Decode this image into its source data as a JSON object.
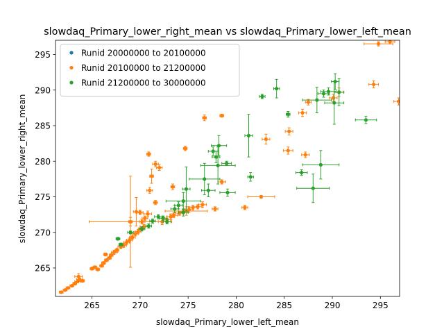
{
  "chart_data": {
    "type": "scatter",
    "title": "slowdaq_Primary_lower_right_mean vs slowdaq_Primary_lower_left_mean",
    "xlabel": "slowdaq_Primary_lower_left_mean",
    "ylabel": "slowdaq_Primary_lower_right_mean",
    "xlim": [
      261.2,
      297.0
    ],
    "ylim": [
      261.0,
      297.0
    ],
    "xticks": [
      "265",
      "270",
      "275",
      "280",
      "285",
      "290",
      "295"
    ],
    "yticks": [
      "265",
      "270",
      "275",
      "280",
      "285",
      "290",
      "295"
    ],
    "grid": false,
    "legend_position": "upper-left",
    "error_bars": true,
    "series": [
      {
        "name": "Runid 20000000 to 20100000",
        "color": "#1f77b4",
        "points": []
      },
      {
        "name": "Runid 20100000 to 21200000",
        "color": "#ff7f0e",
        "points": [
          [
            261.8,
            261.6,
            0.2,
            0.1
          ],
          [
            262.2,
            261.9,
            0.2,
            0.1
          ],
          [
            262.5,
            262.2,
            0.2,
            0.1
          ],
          [
            262.9,
            262.5,
            0.2,
            0.1
          ],
          [
            263.2,
            262.8,
            0.2,
            0.2
          ],
          [
            263.5,
            263.1,
            0.3,
            0.2
          ],
          [
            263.7,
            263.4,
            0.3,
            0.2
          ],
          [
            263.6,
            263.8,
            0.4,
            0.4
          ],
          [
            264.0,
            263.2,
            0.2,
            0.2
          ],
          [
            265.0,
            264.9,
            0.2,
            0.2
          ],
          [
            265.3,
            265.1,
            0.2,
            0.2
          ],
          [
            265.6,
            264.8,
            0.2,
            0.2
          ],
          [
            266.0,
            265.3,
            0.2,
            0.2
          ],
          [
            266.2,
            265.7,
            0.2,
            0.2
          ],
          [
            266.5,
            266.1,
            0.2,
            0.2
          ],
          [
            266.8,
            266.4,
            0.2,
            0.2
          ],
          [
            266.4,
            266.9,
            0.2,
            0.2
          ],
          [
            267.0,
            266.8,
            0.2,
            0.2
          ],
          [
            267.3,
            267.2,
            0.3,
            0.3
          ],
          [
            267.6,
            267.5,
            0.2,
            0.3
          ],
          [
            268.0,
            268.0,
            0.3,
            0.3
          ],
          [
            268.3,
            268.2,
            0.3,
            0.3
          ],
          [
            268.6,
            268.6,
            0.3,
            0.3
          ],
          [
            268.9,
            268.9,
            0.3,
            0.3
          ],
          [
            269.2,
            269.3,
            0.3,
            0.3
          ],
          [
            269.5,
            269.8,
            0.3,
            0.3
          ],
          [
            269.8,
            270.1,
            0.3,
            0.3
          ],
          [
            270.1,
            270.5,
            0.3,
            0.3
          ],
          [
            270.4,
            270.8,
            0.4,
            0.3
          ],
          [
            270.2,
            271.5,
            0.3,
            0.3
          ],
          [
            270.5,
            272.0,
            0.3,
            0.3
          ],
          [
            270.0,
            272.8,
            0.3,
            0.3
          ],
          [
            269.0,
            271.5,
            4.3,
            0.6
          ],
          [
            269.0,
            271.5,
            0.2,
            6.4
          ],
          [
            269.6,
            272.9,
            0.3,
            2.0
          ],
          [
            270.8,
            272.6,
            0.4,
            0.4
          ],
          [
            271.0,
            275.9,
            0.3,
            0.4
          ],
          [
            271.2,
            277.9,
            0.2,
            1.0
          ],
          [
            271.6,
            279.6,
            0.3,
            0.4
          ],
          [
            272.0,
            279.1,
            0.3,
            0.4
          ],
          [
            270.9,
            281.0,
            0.2,
            0.3
          ],
          [
            271.6,
            274.2,
            0.2,
            0.3
          ],
          [
            272.3,
            271.5,
            0.4,
            0.4
          ],
          [
            272.8,
            271.8,
            0.4,
            0.4
          ],
          [
            273.2,
            272.2,
            0.4,
            0.4
          ],
          [
            273.5,
            272.4,
            0.4,
            0.3
          ],
          [
            274.1,
            272.7,
            0.4,
            0.3
          ],
          [
            274.5,
            272.9,
            0.5,
            0.3
          ],
          [
            275.1,
            273.2,
            0.4,
            0.4
          ],
          [
            275.5,
            273.5,
            0.5,
            0.3
          ],
          [
            276.0,
            273.6,
            0.5,
            0.3
          ],
          [
            276.5,
            273.9,
            0.4,
            0.4
          ],
          [
            274.8,
            273.0,
            2.2,
            0.6
          ],
          [
            273.4,
            276.4,
            0.2,
            0.4
          ],
          [
            274.7,
            281.8,
            0.2,
            0.3
          ],
          [
            276.7,
            286.1,
            0.2,
            0.4
          ],
          [
            277.8,
            273.3,
            0.3,
            0.3
          ],
          [
            278.5,
            277.1,
            0.4,
            0.3
          ],
          [
            278.5,
            286.4,
            0.2,
            0.2
          ],
          [
            280.9,
            273.5,
            0.3,
            0.3
          ],
          [
            282.6,
            275.0,
            1.4,
            0.2
          ],
          [
            283.1,
            283.1,
            0.4,
            0.7
          ],
          [
            285.4,
            281.5,
            0.5,
            0.5
          ],
          [
            285.5,
            284.2,
            0.4,
            0.5
          ],
          [
            286.9,
            286.8,
            0.4,
            0.5
          ],
          [
            287.2,
            280.9,
            0.4,
            0.4
          ],
          [
            287.5,
            288.3,
            0.3,
            0.4
          ],
          [
            290.1,
            288.9,
            0.4,
            0.5
          ],
          [
            290.7,
            289.7,
            0.5,
            0.6
          ],
          [
            294.3,
            290.8,
            0.5,
            0.5
          ],
          [
            294.8,
            296.5,
            1.5,
            0.3
          ],
          [
            296.0,
            296.8,
            0.5,
            0.3
          ],
          [
            296.9,
            288.4,
            0.5,
            0.5
          ]
        ]
      },
      {
        "name": "Runid 21200000 to 30000000",
        "color": "#2ca02c",
        "points": [
          [
            267.7,
            269.1,
            0.2,
            0.2
          ],
          [
            268.0,
            268.3,
            0.2,
            0.2
          ],
          [
            269.0,
            270.0,
            0.3,
            0.2
          ],
          [
            270.2,
            270.5,
            0.3,
            0.3
          ],
          [
            270.9,
            270.9,
            0.3,
            0.3
          ],
          [
            271.3,
            271.6,
            0.3,
            0.3
          ],
          [
            271.9,
            272.2,
            0.4,
            0.3
          ],
          [
            272.4,
            272.0,
            0.4,
            0.3
          ],
          [
            272.8,
            271.5,
            0.4,
            0.3
          ],
          [
            273.6,
            273.3,
            0.4,
            0.5
          ],
          [
            274.0,
            273.8,
            0.4,
            0.5
          ],
          [
            274.5,
            272.8,
            0.5,
            0.5
          ],
          [
            274.8,
            276.1,
            0.4,
            3.1
          ],
          [
            274.5,
            274.4,
            1.8,
            1.2
          ],
          [
            276.7,
            277.5,
            1.6,
            2.2
          ],
          [
            277.1,
            275.9,
            0.7,
            0.9
          ],
          [
            277.6,
            281.4,
            0.5,
            0.6
          ],
          [
            277.9,
            280.6,
            0.4,
            0.8
          ],
          [
            278.2,
            282.2,
            0.8,
            1.4
          ],
          [
            278.1,
            279.4,
            1.8,
            2.6
          ],
          [
            279.0,
            279.7,
            0.5,
            0.3
          ],
          [
            279.1,
            275.6,
            0.8,
            0.5
          ],
          [
            281.3,
            283.6,
            0.4,
            3.0
          ],
          [
            281.5,
            277.8,
            0.3,
            0.6
          ],
          [
            282.7,
            289.1,
            0.3,
            0.3
          ],
          [
            284.2,
            290.2,
            0.3,
            1.3
          ],
          [
            285.4,
            286.6,
            0.2,
            0.4
          ],
          [
            286.8,
            278.4,
            0.6,
            0.4
          ],
          [
            288.0,
            276.2,
            1.7,
            2.0
          ],
          [
            288.8,
            279.5,
            1.9,
            2.0
          ],
          [
            288.4,
            288.6,
            1.5,
            1.8
          ],
          [
            289.1,
            289.5,
            0.6,
            0.5
          ],
          [
            289.6,
            289.8,
            0.8,
            0.5
          ],
          [
            290.2,
            288.2,
            1.0,
            3.0
          ],
          [
            290.3,
            291.2,
            0.4,
            1.1
          ],
          [
            290.7,
            289.7,
            0.5,
            1.9
          ],
          [
            293.5,
            285.8,
            1.1,
            0.5
          ]
        ]
      }
    ]
  }
}
